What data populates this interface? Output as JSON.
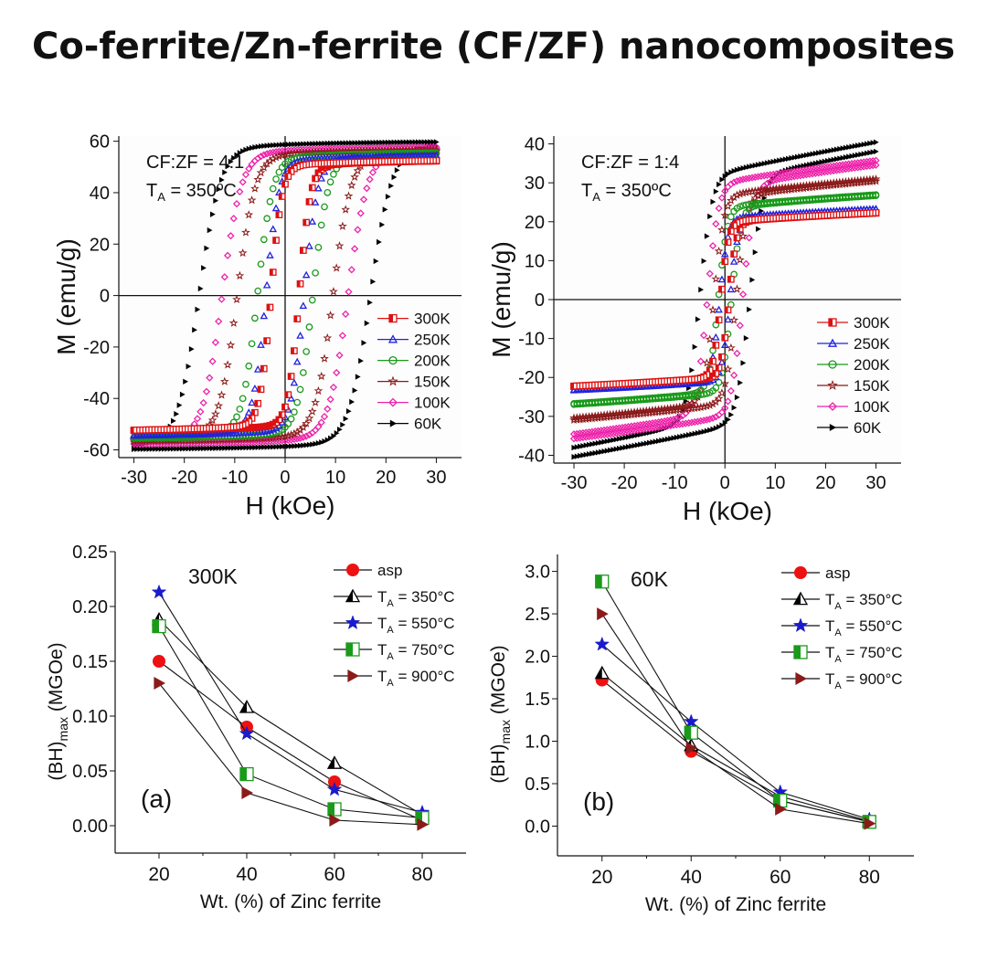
{
  "title": "Co-ferrite/Zn-ferrite (CF/ZF) nanocomposites",
  "chart_data": [
    {
      "type": "line",
      "subtype": "hysteresis-loop",
      "annotation": [
        "CF:ZF = 4:1",
        "T",
        "A",
        " = 350ºC"
      ],
      "xlabel": "H (kOe)",
      "ylabel": "M (emu/g)",
      "xlim": [
        -33,
        35
      ],
      "ylim": [
        -63,
        62
      ],
      "xticks": [
        -30,
        -20,
        -10,
        0,
        10,
        20,
        30
      ],
      "yticks": [
        -60,
        -40,
        -20,
        0,
        20,
        40,
        60
      ],
      "legend_position": "center-right",
      "series": [
        {
          "name": "300K",
          "color": "#dd1111",
          "marker": "half-square",
          "ms": 53,
          "hc": 2.8,
          "w": 2.2
        },
        {
          "name": "250K",
          "color": "#2222dd",
          "marker": "triangle-open",
          "ms": 55,
          "hc": 3.8,
          "w": 2.6
        },
        {
          "name": "200K",
          "color": "#1a9a1a",
          "marker": "circle-open",
          "ms": 56,
          "hc": 5.5,
          "w": 3.0
        },
        {
          "name": "150K",
          "color": "#8b1a1a",
          "marker": "star-open",
          "ms": 57,
          "hc": 9.5,
          "w": 3.5
        },
        {
          "name": "100K",
          "color": "#ee22aa",
          "marker": "diamond-open",
          "ms": 58,
          "hc": 12.5,
          "w": 3.8
        },
        {
          "name": "60K",
          "color": "#000000",
          "marker": "triangle-right",
          "ms": 60,
          "hc": 17.0,
          "w": 4.2
        }
      ]
    },
    {
      "type": "line",
      "subtype": "hysteresis-loop",
      "annotation": [
        "CF:ZF = 1:4",
        "T",
        "A",
        " = 350ºC"
      ],
      "xlabel": "H (kOe)",
      "ylabel": "M (emu/g)",
      "xlim": [
        -34,
        35
      ],
      "ylim": [
        -42,
        42
      ],
      "xticks": [
        -30,
        -20,
        -10,
        0,
        10,
        20,
        30
      ],
      "yticks": [
        -40,
        -30,
        -20,
        -10,
        0,
        10,
        20,
        30,
        40
      ],
      "legend_position": "center-right",
      "series": [
        {
          "name": "300K",
          "color": "#dd1111",
          "marker": "half-square",
          "ms": 21,
          "hc": 0.8,
          "w": 1.5,
          "chi": 0.05
        },
        {
          "name": "250K",
          "color": "#2222dd",
          "marker": "triangle-open",
          "ms": 22,
          "hc": 1.0,
          "w": 1.6,
          "chi": 0.05
        },
        {
          "name": "200K",
          "color": "#1a9a1a",
          "marker": "circle-open",
          "ms": 25,
          "hc": 1.3,
          "w": 1.8,
          "chi": 0.07
        },
        {
          "name": "150K",
          "color": "#8b1a1a",
          "marker": "star-open",
          "ms": 28,
          "hc": 2.2,
          "w": 2.0,
          "chi": 0.1
        },
        {
          "name": "100K",
          "color": "#ee22aa",
          "marker": "diamond-open",
          "ms": 31,
          "hc": 3.5,
          "w": 2.2,
          "chi": 0.15
        },
        {
          "name": "60K",
          "color": "#000000",
          "marker": "triangle-right",
          "ms": 33,
          "hc": 5.0,
          "w": 2.5,
          "chi": 0.22
        }
      ]
    },
    {
      "type": "line",
      "panel_label": "(a)",
      "annotation": "300K",
      "xlabel": "Wt. (%) of Zinc ferrite",
      "ylabel": "(BH)",
      "ylabel_sub": "max",
      "ylabel_unit": " (MGOe)",
      "xlim": [
        10,
        90
      ],
      "ylim": [
        -0.025,
        0.25
      ],
      "xticks": [
        20,
        40,
        60,
        80
      ],
      "yticks": [
        0.0,
        0.05,
        0.1,
        0.15,
        0.2,
        0.25
      ],
      "ytick_labels": [
        "0.00",
        "0.05",
        "0.10",
        "0.15",
        "0.20",
        "0.25"
      ],
      "categories": [
        20,
        40,
        60,
        80
      ],
      "legend_position": "top-right",
      "series": [
        {
          "name": "asp",
          "marker": "circle",
          "color": "#ee1111",
          "values": [
            0.15,
            0.09,
            0.04,
            0.005
          ]
        },
        {
          "name": "T",
          "name_sub": "A",
          "name_rest": " = 350°C",
          "marker": "triangle-half",
          "color": "#000000",
          "values": [
            0.188,
            0.108,
            0.057,
            0.01
          ]
        },
        {
          "name": "T",
          "name_sub": "A",
          "name_rest": " = 550°C",
          "marker": "star",
          "color": "#1a1acc",
          "values": [
            0.213,
            0.084,
            0.033,
            0.012
          ]
        },
        {
          "name": "T",
          "name_sub": "A",
          "name_rest": " = 750°C",
          "marker": "square-half",
          "color": "#1a9a1a",
          "values": [
            0.182,
            0.047,
            0.015,
            0.007
          ]
        },
        {
          "name": "T",
          "name_sub": "A",
          "name_rest": " = 900°C",
          "marker": "triangle-right",
          "color": "#8b1a1a",
          "values": [
            0.13,
            0.03,
            0.005,
            0.001
          ]
        }
      ]
    },
    {
      "type": "line",
      "panel_label": "(b)",
      "annotation": "60K",
      "xlabel": "Wt. (%) of Zinc ferrite",
      "ylabel": "(BH)",
      "ylabel_sub": "max",
      "ylabel_unit": " (MGOe)",
      "xlim": [
        10,
        90
      ],
      "ylim": [
        -0.35,
        3.2
      ],
      "xticks": [
        20,
        40,
        60,
        80
      ],
      "yticks": [
        0.0,
        0.5,
        1.0,
        1.5,
        2.0,
        2.5,
        3.0
      ],
      "ytick_labels": [
        "0.0",
        "0.5",
        "1.0",
        "1.5",
        "2.0",
        "2.5",
        "3.0"
      ],
      "categories": [
        20,
        40,
        60,
        80
      ],
      "legend_position": "top-right",
      "series": [
        {
          "name": "asp",
          "marker": "circle",
          "color": "#ee1111",
          "values": [
            1.72,
            0.88,
            0.3,
            0.05
          ]
        },
        {
          "name": "T",
          "name_sub": "A",
          "name_rest": " = 350°C",
          "marker": "triangle-half",
          "color": "#000000",
          "values": [
            1.8,
            0.95,
            0.35,
            0.06
          ]
        },
        {
          "name": "T",
          "name_sub": "A",
          "name_rest": " = 550°C",
          "marker": "star",
          "color": "#1a1acc",
          "values": [
            2.14,
            1.23,
            0.4,
            0.08
          ]
        },
        {
          "name": "T",
          "name_sub": "A",
          "name_rest": " = 750°C",
          "marker": "square-half",
          "color": "#1a9a1a",
          "values": [
            2.88,
            1.1,
            0.3,
            0.05
          ]
        },
        {
          "name": "T",
          "name_sub": "A",
          "name_rest": " = 900°C",
          "marker": "triangle-right",
          "color": "#8b1a1a",
          "values": [
            2.5,
            0.92,
            0.2,
            0.03
          ]
        }
      ]
    }
  ]
}
